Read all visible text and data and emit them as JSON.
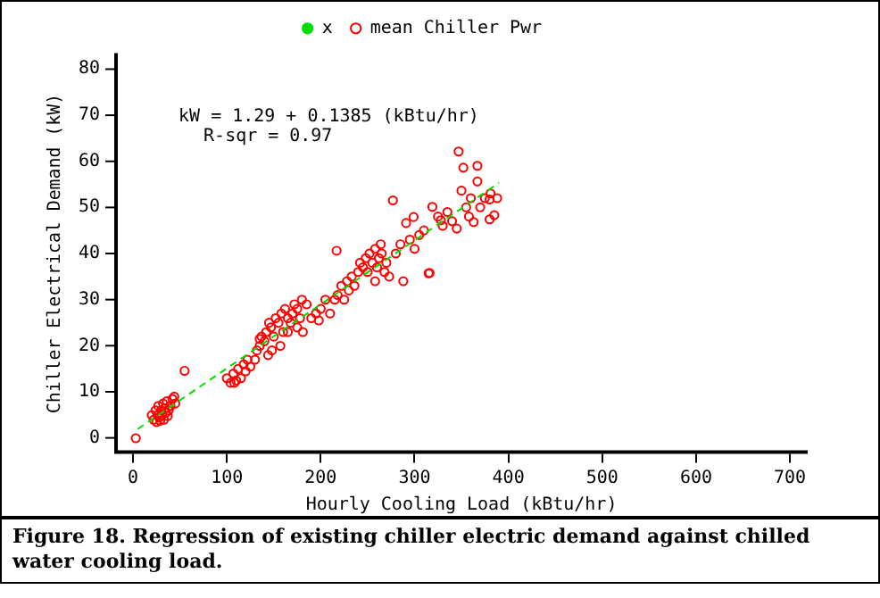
{
  "chart_data": {
    "type": "scatter",
    "xlabel": "Hourly Cooling Load (kBtu/hr)",
    "ylabel": "Chiller Electrical Demand (kW)",
    "xlim": [
      -18,
      718
    ],
    "xticks": [
      0,
      100,
      200,
      300,
      400,
      500,
      600,
      700
    ],
    "ylim": [
      -3,
      83
    ],
    "yticks": [
      0,
      10,
      20,
      30,
      40,
      50,
      60,
      70,
      80
    ],
    "grid": false,
    "legend": "top",
    "marker": "circle",
    "annotations": [
      "kW = 1.29 + 0.1385 (kBtu/hr)",
      "R-sqr = 0.97",
      "Figure 18. Regression of existing chiller electric demand against chilled water cooling load."
    ],
    "series": [
      {
        "name": "x",
        "type": "line",
        "color": "#00dd00",
        "line_style": "dashed",
        "marker": "none",
        "x": [
          5,
          390
        ],
        "values": [
          1.98,
          55.3
        ]
      },
      {
        "name": "mean Chiller Pwr",
        "color": "#ff0000",
        "x": [
          3,
          55,
          20,
          22,
          24,
          25,
          26,
          27,
          28,
          30,
          31,
          32,
          33,
          34,
          35,
          36,
          38,
          40,
          42,
          44,
          45,
          29,
          37,
          100,
          104,
          107,
          110,
          112,
          115,
          118,
          120,
          122,
          125,
          108,
          130,
          132,
          135,
          137,
          140,
          142,
          144,
          145,
          147,
          150,
          152,
          155,
          157,
          160,
          135,
          148,
          158,
          162,
          165,
          168,
          170,
          172,
          175,
          178,
          180,
          185,
          165,
          175,
          190,
          195,
          198,
          200,
          205,
          210,
          215,
          181,
          218,
          222,
          225,
          228,
          230,
          233,
          236,
          240,
          217,
          242,
          245,
          248,
          250,
          252,
          255,
          258,
          260,
          262,
          265,
          268,
          270,
          273,
          258,
          264,
          277,
          280,
          285,
          288,
          291,
          299,
          295,
          300,
          305,
          310,
          315,
          316,
          319,
          325,
          328,
          330,
          335,
          340,
          345,
          347,
          350,
          352,
          355,
          358,
          360,
          363,
          367,
          367,
          370,
          375,
          380,
          381,
          385,
          380,
          388
        ],
        "values": [
          0,
          14.6,
          5,
          4,
          6,
          3.5,
          5,
          7,
          4.5,
          6,
          5,
          7.5,
          4,
          6.5,
          5.5,
          8,
          6,
          7,
          8.5,
          9,
          7.5,
          3.8,
          4.8,
          13,
          12,
          14,
          12.5,
          15,
          13,
          16,
          14.5,
          17,
          15.5,
          12,
          17,
          19,
          20,
          22,
          21,
          23,
          18,
          25,
          24,
          22,
          26,
          25,
          20,
          23,
          21.5,
          19,
          27,
          28,
          26,
          25,
          27,
          29,
          28,
          26,
          30,
          29,
          23,
          24,
          26,
          27,
          25.5,
          28,
          30,
          27,
          30,
          23,
          31,
          33,
          30,
          34,
          32,
          35,
          33,
          36,
          40.6,
          38,
          37,
          39,
          36,
          40,
          38,
          41,
          37,
          39,
          40,
          36,
          38,
          35,
          34,
          42,
          51.5,
          40,
          42,
          34,
          46.6,
          47.9,
          43,
          41,
          44,
          45,
          35.7,
          35.8,
          50.1,
          48,
          47.2,
          46,
          49,
          47,
          45.4,
          62.1,
          53.6,
          58.6,
          50,
          48,
          52,
          46.8,
          59,
          55.6,
          50,
          52,
          51.7,
          53,
          48.3,
          47.4,
          52
        ]
      }
    ]
  }
}
